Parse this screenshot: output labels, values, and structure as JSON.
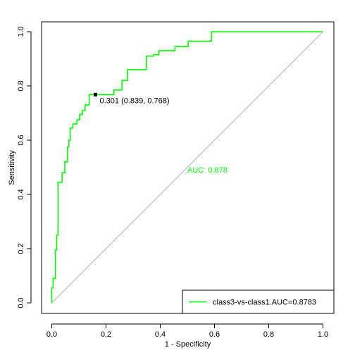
{
  "chart_data": {
    "type": "line",
    "title": "",
    "xlabel": "1 - Specificity",
    "ylabel": "Sensitivity",
    "xlim": [
      0,
      1
    ],
    "ylim": [
      0,
      1
    ],
    "xticks": [
      "0.0",
      "0.2",
      "0.4",
      "0.6",
      "0.8",
      "1.0"
    ],
    "yticks": [
      "0.0",
      "0.2",
      "0.4",
      "0.6",
      "0.8",
      "1.0"
    ],
    "grid": false,
    "legend_position": "bottom-right",
    "diagonal_color": "#b4b4b4",
    "series": [
      {
        "name": "class3-vs-class1.AUC=0.8783",
        "color": "#00ff00",
        "x": [
          0.0,
          0.0,
          0.005,
          0.005,
          0.013,
          0.013,
          0.018,
          0.018,
          0.023,
          0.023,
          0.038,
          0.038,
          0.048,
          0.048,
          0.058,
          0.058,
          0.063,
          0.063,
          0.068,
          0.068,
          0.078,
          0.078,
          0.093,
          0.093,
          0.103,
          0.103,
          0.113,
          0.113,
          0.123,
          0.123,
          0.138,
          0.138,
          0.161,
          0.161,
          0.229,
          0.229,
          0.259,
          0.259,
          0.279,
          0.279,
          0.349,
          0.349,
          0.375,
          0.375,
          0.395,
          0.395,
          0.454,
          0.454,
          0.503,
          0.503,
          0.589,
          0.589,
          1.0
        ],
        "y": [
          0.0,
          0.055,
          0.055,
          0.09,
          0.09,
          0.195,
          0.195,
          0.25,
          0.25,
          0.445,
          0.445,
          0.48,
          0.48,
          0.52,
          0.52,
          0.575,
          0.575,
          0.6,
          0.6,
          0.645,
          0.645,
          0.66,
          0.66,
          0.675,
          0.675,
          0.695,
          0.695,
          0.71,
          0.71,
          0.73,
          0.73,
          0.768,
          0.768,
          0.768,
          0.768,
          0.785,
          0.785,
          0.82,
          0.82,
          0.86,
          0.86,
          0.91,
          0.91,
          0.915,
          0.915,
          0.93,
          0.93,
          0.945,
          0.945,
          0.965,
          0.965,
          1.0,
          1.0
        ]
      }
    ],
    "threshold_point": {
      "x": 0.161,
      "y": 0.768,
      "label": "0.301 (0.839, 0.768)"
    },
    "auc_label": "AUC: 0.878"
  }
}
